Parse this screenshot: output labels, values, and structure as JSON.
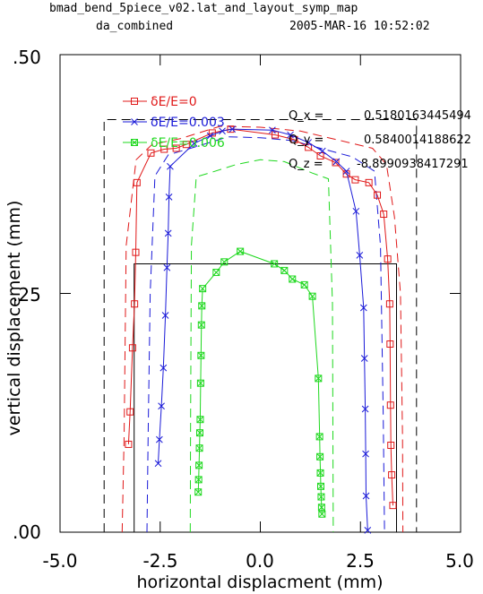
{
  "header": {
    "line1": "bmad_bend_5piece_v02.lat_and_layout_symp_map",
    "line2_left": "da_combined",
    "line2_right": "2005-MAR-16  10:52:02"
  },
  "annotations": [
    {
      "label": "Q_x  =",
      "value": "0.5180163445494"
    },
    {
      "label": "Q_y  =",
      "value": "0.5840014188622"
    },
    {
      "label": "Q_z  =",
      "value": "-8.8990938417291"
    }
  ],
  "chart_data": {
    "type": "line",
    "title": "",
    "xlabel": "horizontal displacment (mm)",
    "ylabel": "vertical displacement (mm)",
    "xlim": [
      -5.0,
      5.0
    ],
    "ylim": [
      0.0,
      0.5
    ],
    "xticks": [
      -5.0,
      -2.5,
      0.0,
      2.5,
      5.0
    ],
    "xtick_labels": [
      "-5.0",
      "-2.5",
      "0.0",
      "2.5",
      "5.0"
    ],
    "yticks": [
      0.0,
      0.25,
      0.5
    ],
    "ytick_labels": [
      ".00",
      ".25",
      ".50"
    ],
    "grid": false,
    "legend_position": "top-left",
    "series": [
      {
        "name": "δE/E=0",
        "color": "#e01818",
        "marker": "square",
        "x": [
          -3.29,
          -3.25,
          -3.19,
          -3.14,
          -3.11,
          -3.08,
          -2.73,
          -2.4,
          -2.1,
          -1.85,
          -1.2,
          -0.74,
          0.37,
          0.85,
          1.2,
          1.5,
          1.88,
          2.15,
          2.37,
          2.71,
          2.92,
          3.08,
          3.18,
          3.23,
          3.24,
          3.25,
          3.26,
          3.28,
          3.31
        ],
        "y": [
          0.092,
          0.126,
          0.193,
          0.239,
          0.293,
          0.366,
          0.397,
          0.401,
          0.402,
          0.406,
          0.418,
          0.422,
          0.416,
          0.411,
          0.403,
          0.394,
          0.387,
          0.375,
          0.369,
          0.366,
          0.353,
          0.333,
          0.286,
          0.239,
          0.197,
          0.133,
          0.091,
          0.06,
          0.028
        ]
      },
      {
        "name": "δE/E=0.003",
        "color": "#1a1ad8",
        "marker": "x",
        "x": [
          -2.55,
          -2.52,
          -2.47,
          -2.42,
          -2.37,
          -2.33,
          -2.3,
          -2.28,
          -2.25,
          -1.65,
          -1.25,
          -0.95,
          -0.7,
          0.3,
          0.75,
          1.2,
          1.55,
          1.9,
          2.15,
          2.39,
          2.48,
          2.58,
          2.6,
          2.62,
          2.63,
          2.64,
          2.68
        ],
        "y": [
          0.072,
          0.097,
          0.132,
          0.172,
          0.227,
          0.277,
          0.313,
          0.351,
          0.383,
          0.407,
          0.415,
          0.42,
          0.422,
          0.421,
          0.416,
          0.408,
          0.399,
          0.388,
          0.378,
          0.336,
          0.29,
          0.235,
          0.182,
          0.129,
          0.082,
          0.038,
          0.002
        ]
      },
      {
        "name": "δE/E=0.006",
        "color": "#1ed81e",
        "marker": "square-x",
        "x": [
          -1.55,
          -1.54,
          -1.53,
          -1.52,
          -1.51,
          -1.5,
          -1.49,
          -1.48,
          -1.47,
          -1.46,
          -1.44,
          -1.1,
          -0.9,
          -0.5,
          0.35,
          0.6,
          0.8,
          1.1,
          1.3,
          1.45,
          1.48,
          1.49,
          1.5,
          1.51,
          1.52,
          1.53,
          1.54
        ],
        "y": [
          0.042,
          0.055,
          0.07,
          0.088,
          0.104,
          0.118,
          0.156,
          0.185,
          0.217,
          0.237,
          0.255,
          0.272,
          0.283,
          0.294,
          0.281,
          0.274,
          0.265,
          0.259,
          0.247,
          0.161,
          0.1,
          0.079,
          0.062,
          0.048,
          0.037,
          0.026,
          0.019
        ]
      }
    ],
    "outlines": [
      {
        "color": "#000000",
        "dash": true,
        "x": [
          -3.9,
          -3.9,
          3.9,
          3.9
        ],
        "y": [
          0.0,
          0.432,
          0.432,
          0.0
        ]
      },
      {
        "color": "#000000",
        "dash": false,
        "x": [
          -3.15,
          -3.15,
          3.4,
          3.4
        ],
        "y": [
          0.0,
          0.281,
          0.281,
          0.0
        ]
      },
      {
        "color": "#e01818",
        "dash": true,
        "x": [
          -3.45,
          -3.4,
          -3.35,
          -3.1,
          -2.7,
          -2.0,
          -1.0,
          0.0,
          1.0,
          2.0,
          2.8,
          3.15,
          3.35,
          3.5,
          3.55,
          3.56
        ],
        "y": [
          0.0,
          0.1,
          0.3,
          0.39,
          0.406,
          0.412,
          0.425,
          0.424,
          0.42,
          0.41,
          0.402,
          0.385,
          0.33,
          0.25,
          0.1,
          0.0
        ]
      },
      {
        "color": "#1a1ad8",
        "dash": true,
        "x": [
          -2.83,
          -2.8,
          -2.75,
          -2.63,
          -2.3,
          -1.5,
          -0.8,
          0.0,
          0.8,
          1.5,
          2.3,
          2.85,
          3.0,
          3.07,
          3.1
        ],
        "y": [
          0.0,
          0.1,
          0.25,
          0.373,
          0.395,
          0.405,
          0.414,
          0.413,
          0.41,
          0.402,
          0.393,
          0.378,
          0.3,
          0.12,
          0.0
        ]
      },
      {
        "color": "#1ed81e",
        "dash": true,
        "x": [
          -1.75,
          -1.74,
          -1.72,
          -1.6,
          -1.2,
          -0.6,
          0.0,
          0.6,
          1.3,
          1.7,
          1.8,
          1.82
        ],
        "y": [
          0.0,
          0.12,
          0.3,
          0.372,
          0.377,
          0.385,
          0.39,
          0.388,
          0.376,
          0.37,
          0.24,
          0.0
        ]
      }
    ]
  }
}
